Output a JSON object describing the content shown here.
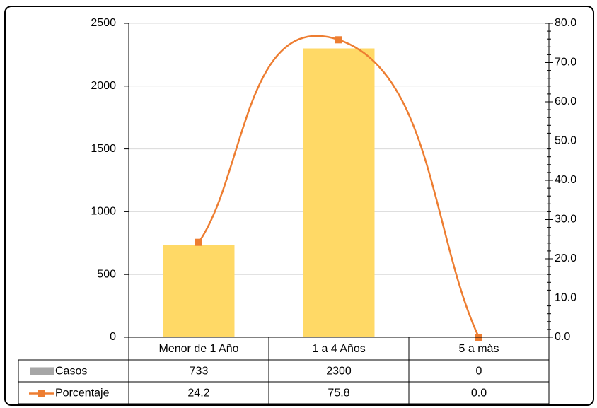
{
  "chart_data": {
    "type": "bar",
    "categories": [
      "Menor de 1 Año",
      "1 a 4 Años",
      "5 a màs"
    ],
    "series": [
      {
        "name": "Casos",
        "type": "bar",
        "axis": "left",
        "values": [
          733,
          2300,
          0
        ],
        "color": "#FFD966"
      },
      {
        "name": "Porcentaje",
        "type": "line",
        "axis": "right",
        "smooth": true,
        "marker": "square",
        "values": [
          24.2,
          75.8,
          0.0
        ],
        "color": "#ED7D31"
      }
    ],
    "y_left": {
      "min": 0,
      "max": 2500,
      "ticks": [
        "0",
        "500",
        "1000",
        "1500",
        "2000",
        "2500"
      ]
    },
    "y_right": {
      "min": 0,
      "max": 80,
      "ticks": [
        "0.0",
        "10.0",
        "20.0",
        "30.0",
        "40.0",
        "50.0",
        "60.0",
        "70.0",
        "80.0"
      ]
    },
    "data_table": {
      "rows": [
        {
          "label": "Casos",
          "cells": [
            "733",
            "2300",
            "0"
          ]
        },
        {
          "label": "Porcentaje",
          "cells": [
            "24.2",
            "75.8",
            "0.0"
          ]
        }
      ]
    },
    "grid": true,
    "legend": "data-table",
    "colors": {
      "gridline": "#D9D9D9",
      "legend_bar_key": "#A6A6A6"
    }
  }
}
